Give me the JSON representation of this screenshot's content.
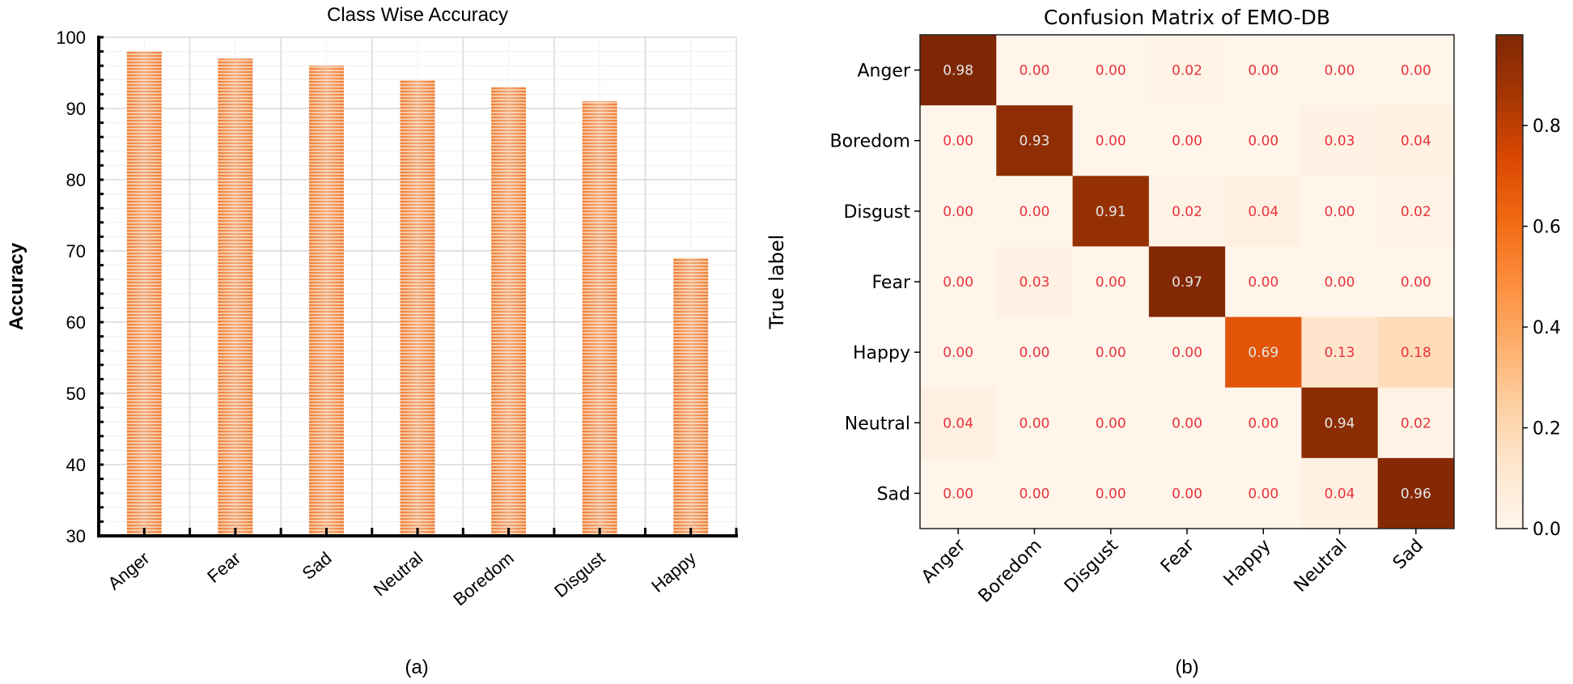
{
  "chart_data": [
    {
      "type": "bar",
      "title": "Class Wise Accuracy",
      "xlabel": "",
      "ylabel": "Accuracy",
      "categories": [
        "Anger",
        "Fear",
        "Sad",
        "Neutral",
        "Boredom",
        "Disgust",
        "Happy"
      ],
      "values": [
        98,
        97,
        96,
        94,
        93,
        91,
        69
      ],
      "ylim": [
        30,
        100
      ],
      "yticks": [
        30,
        40,
        50,
        60,
        70,
        80,
        90,
        100
      ],
      "grid": true,
      "bar_color": "#ED7D31",
      "bar_fill": "horizontal-stripes",
      "caption": "(a)"
    },
    {
      "type": "heatmap",
      "title": "Confusion Matrix of EMO-DB",
      "ylabel": "True label",
      "xlabel": "",
      "x_categories": [
        "Anger",
        "Boredom",
        "Disgust",
        "Fear",
        "Happy",
        "Neutral",
        "Sad"
      ],
      "y_categories": [
        "Anger",
        "Boredom",
        "Disgust",
        "Fear",
        "Happy",
        "Neutral",
        "Sad"
      ],
      "values": [
        [
          0.98,
          0.0,
          0.0,
          0.02,
          0.0,
          0.0,
          0.0
        ],
        [
          0.0,
          0.93,
          0.0,
          0.0,
          0.0,
          0.03,
          0.04
        ],
        [
          0.0,
          0.0,
          0.91,
          0.02,
          0.04,
          0.0,
          0.02
        ],
        [
          0.0,
          0.03,
          0.0,
          0.97,
          0.0,
          0.0,
          0.0
        ],
        [
          0.0,
          0.0,
          0.0,
          0.0,
          0.69,
          0.13,
          0.18
        ],
        [
          0.04,
          0.0,
          0.0,
          0.0,
          0.0,
          0.94,
          0.02
        ],
        [
          0.0,
          0.0,
          0.0,
          0.0,
          0.0,
          0.04,
          0.96
        ]
      ],
      "colormap": "Oranges",
      "colorbar_range": [
        0.0,
        0.98
      ],
      "colorbar_ticks": [
        "0.0",
        "0.2",
        "0.4",
        "0.6",
        "0.8"
      ],
      "annotation_color_light": "#E8333B",
      "annotation_color_dark": "#E6E6E6",
      "caption": "(b)"
    }
  ]
}
